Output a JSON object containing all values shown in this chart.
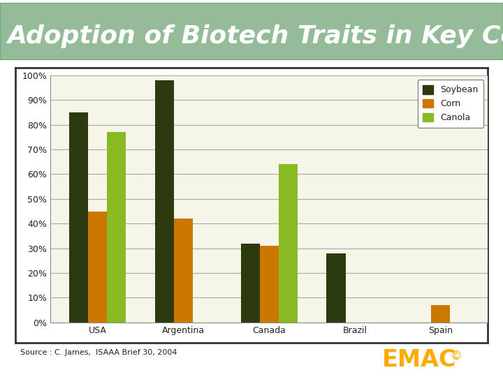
{
  "title": "Adoption of Biotech Traits in Key Country",
  "title_bg_color": "#1a6b2a",
  "title_text_color": "#ffffff",
  "title_fontsize": 26,
  "chart_bg_color": "#f5f5e8",
  "outer_bg_color": "#ffffff",
  "panel_bg_color": "#ffffff",
  "categories": [
    "USA",
    "Argentina",
    "Canada",
    "Brazil",
    "Spain"
  ],
  "series": {
    "Soybean": [
      85,
      98,
      32,
      28,
      0
    ],
    "Corn": [
      45,
      42,
      31,
      0,
      7
    ],
    "Canola": [
      77,
      0,
      64,
      0,
      0
    ]
  },
  "colors": {
    "Soybean": "#2d3a10",
    "Corn": "#cc7700",
    "Canola": "#88bb22"
  },
  "ylim": [
    0,
    100
  ],
  "yticks": [
    0,
    10,
    20,
    30,
    40,
    50,
    60,
    70,
    80,
    90,
    100
  ],
  "ytick_labels": [
    "0%",
    "10%",
    "20%",
    "30%",
    "40%",
    "50%",
    "60%",
    "70%",
    "80%",
    "90%",
    "100%"
  ],
  "source_text": "Source : C. James,  ISAAA Brief 30, 2004",
  "emac_text": "EMAC",
  "copyright_text": "©",
  "emac_color": "#ffaa00",
  "bar_width": 0.22,
  "grid_color": "#aaaaaa",
  "border_color": "#333333",
  "tick_label_fontsize": 9,
  "cat_label_fontsize": 9
}
